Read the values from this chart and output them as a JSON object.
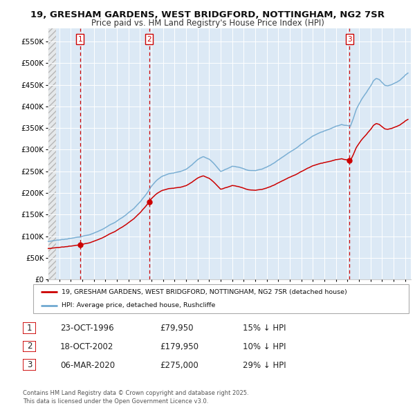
{
  "title_line1": "19, GRESHAM GARDENS, WEST BRIDGFORD, NOTTINGHAM, NG2 7SR",
  "title_line2": "Price paid vs. HM Land Registry's House Price Index (HPI)",
  "xlim_start": 1994.0,
  "xlim_end": 2025.5,
  "ylim_min": 0,
  "ylim_max": 580000,
  "yticks": [
    0,
    50000,
    100000,
    150000,
    200000,
    250000,
    300000,
    350000,
    400000,
    450000,
    500000,
    550000
  ],
  "ytick_labels": [
    "£0",
    "£50K",
    "£100K",
    "£150K",
    "£200K",
    "£250K",
    "£300K",
    "£350K",
    "£400K",
    "£450K",
    "£500K",
    "£550K"
  ],
  "xticks": [
    1994,
    1995,
    1996,
    1997,
    1998,
    1999,
    2000,
    2001,
    2002,
    2003,
    2004,
    2005,
    2006,
    2007,
    2008,
    2009,
    2010,
    2011,
    2012,
    2013,
    2014,
    2015,
    2016,
    2017,
    2018,
    2019,
    2020,
    2021,
    2022,
    2023,
    2024,
    2025
  ],
  "sale_dates": [
    1996.81,
    2002.8,
    2020.18
  ],
  "sale_prices": [
    79950,
    179950,
    275000
  ],
  "sale_labels": [
    "1",
    "2",
    "3"
  ],
  "legend_red": "19, GRESHAM GARDENS, WEST BRIDGFORD, NOTTINGHAM, NG2 7SR (detached house)",
  "legend_blue": "HPI: Average price, detached house, Rushcliffe",
  "table_rows": [
    {
      "label": "1",
      "date": "23-OCT-1996",
      "price": "£79,950",
      "note": "15% ↓ HPI"
    },
    {
      "label": "2",
      "date": "18-OCT-2002",
      "price": "£179,950",
      "note": "10% ↓ HPI"
    },
    {
      "label": "3",
      "date": "06-MAR-2020",
      "price": "£275,000",
      "note": "29% ↓ HPI"
    }
  ],
  "footer": "Contains HM Land Registry data © Crown copyright and database right 2025.\nThis data is licensed under the Open Government Licence v3.0.",
  "bg_color": "#ffffff",
  "plot_bg_color": "#dce9f5",
  "grid_color": "#ffffff",
  "red_line_color": "#cc0000",
  "blue_line_color": "#6fa8d0",
  "vline_color": "#cc0000",
  "hatch_bg_color": "#e8e8e8"
}
